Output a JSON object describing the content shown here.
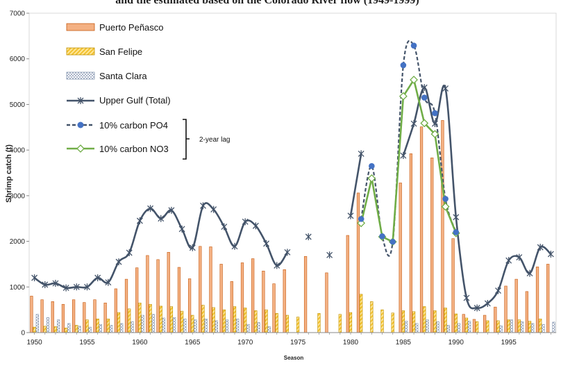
{
  "chart_data": {
    "type": "bar",
    "title": "and the estimated based on the Colorado River flow (1949-1999)",
    "xlabel": "Season",
    "ylabel": "Shrimp catch (t)",
    "xlim": [
      1949.5,
      1999.5
    ],
    "ylim": [
      0,
      7000
    ],
    "y_ticks": [
      "0",
      "1000",
      "2000",
      "3000",
      "4000",
      "5000",
      "6000",
      "7000"
    ],
    "x_ticks": [
      "1950",
      "1955",
      "1960",
      "1965",
      "1970",
      "1975",
      "1980",
      "1985",
      "1990",
      "1995"
    ],
    "bracket_label": "2-year lag",
    "legend": [
      {
        "name": "Puerto Peñasco",
        "kind": "bar",
        "color": "#f4b183"
      },
      {
        "name": "San Felipe",
        "kind": "bar",
        "color": "#ffd966"
      },
      {
        "name": "Santa Clara",
        "kind": "bar",
        "color": "#dae3f3"
      },
      {
        "name": "Upper Gulf (Total)",
        "kind": "line",
        "color": "#44546a"
      },
      {
        "name": "10% carbon PO4",
        "kind": "line",
        "color": "#44546a",
        "marker_color": "#4472c4"
      },
      {
        "name": "10% carbon NO3",
        "kind": "line",
        "color": "#70ad47"
      }
    ],
    "bar_series": [
      {
        "name": "Puerto Peñasco",
        "x": [
          1950,
          1951,
          1952,
          1953,
          1954,
          1955,
          1956,
          1957,
          1958,
          1959,
          1960,
          1961,
          1962,
          1963,
          1964,
          1965,
          1966,
          1967,
          1968,
          1969,
          1970,
          1971,
          1972,
          1973,
          1974,
          1976,
          1978,
          1980,
          1981,
          1985,
          1986,
          1987,
          1988,
          1989,
          1990,
          1991,
          1992,
          1993,
          1994,
          1995,
          1996,
          1997,
          1998,
          1999
        ],
        "values": [
          800,
          720,
          680,
          620,
          720,
          660,
          720,
          650,
          960,
          1170,
          1420,
          1690,
          1600,
          1760,
          1430,
          1180,
          1890,
          1880,
          1500,
          1120,
          1530,
          1620,
          1350,
          1070,
          1380,
          1670,
          1310,
          2130,
          3060,
          3280,
          3920,
          4510,
          3830,
          4650,
          2060,
          400,
          290,
          380,
          560,
          1020,
          1170,
          900,
          1440,
          1500
        ]
      },
      {
        "name": "San Felipe",
        "x": [
          1950,
          1951,
          1952,
          1953,
          1954,
          1955,
          1956,
          1957,
          1958,
          1959,
          1960,
          1961,
          1962,
          1963,
          1964,
          1965,
          1966,
          1967,
          1968,
          1969,
          1970,
          1971,
          1972,
          1973,
          1974,
          1975,
          1977,
          1979,
          1980,
          1981,
          1982,
          1983,
          1984,
          1985,
          1986,
          1987,
          1988,
          1989,
          1990,
          1991,
          1992,
          1993,
          1994,
          1995,
          1996,
          1997,
          1998,
          1999
        ],
        "values": [
          120,
          140,
          130,
          100,
          160,
          280,
          300,
          300,
          440,
          520,
          650,
          620,
          580,
          570,
          470,
          380,
          600,
          550,
          500,
          570,
          540,
          480,
          500,
          420,
          380,
          340,
          420,
          400,
          440,
          840,
          680,
          500,
          430,
          480,
          460,
          570,
          480,
          540,
          410,
          320,
          240,
          260,
          260,
          280,
          280,
          250,
          300,
          0
        ]
      },
      {
        "name": "Santa Clara",
        "x": [
          1950,
          1951,
          1952,
          1953,
          1954,
          1955,
          1956,
          1957,
          1958,
          1959,
          1960,
          1961,
          1962,
          1963,
          1964,
          1965,
          1966,
          1967,
          1968,
          1969,
          1970,
          1971,
          1972,
          1973,
          1984,
          1985,
          1986,
          1987,
          1988,
          1989,
          1990,
          1991,
          1992,
          1993,
          1994,
          1995,
          1996,
          1997,
          1998,
          1999
        ],
        "values": [
          400,
          330,
          280,
          200,
          140,
          120,
          180,
          160,
          200,
          240,
          380,
          400,
          320,
          330,
          300,
          280,
          300,
          260,
          280,
          300,
          180,
          220,
          130,
          0,
          0,
          250,
          200,
          280,
          240,
          160,
          200,
          250,
          0,
          0,
          150,
          280,
          240,
          200,
          180,
          230
        ]
      }
    ],
    "upper_gulf_total": {
      "x": [
        1950,
        1951,
        1952,
        1953,
        1954,
        1955,
        1956,
        1957,
        1958,
        1959,
        1960,
        1961,
        1962,
        1963,
        1964,
        1965,
        1966,
        1967,
        1968,
        1969,
        1970,
        1971,
        1972,
        1973,
        1974,
        1976,
        1978,
        1980,
        1981,
        1985,
        1986,
        1987,
        1988,
        1989,
        1990,
        1991,
        1992,
        1993,
        1994,
        1995,
        1996,
        1997,
        1998,
        1999
      ],
      "values": [
        1200,
        1050,
        1080,
        980,
        1000,
        1000,
        1200,
        1100,
        1550,
        1750,
        2450,
        2720,
        2500,
        2680,
        2270,
        1860,
        2780,
        2700,
        2320,
        1890,
        2430,
        2340,
        1950,
        1470,
        1760,
        2100,
        1700,
        2560,
        3920,
        3880,
        4580,
        5370,
        4580,
        5350,
        2530,
        760,
        540,
        640,
        920,
        1580,
        1650,
        1300,
        1870,
        1720
      ]
    },
    "po4_series": {
      "x": [
        1981,
        1982,
        1983,
        1984,
        1985,
        1986,
        1987,
        1988,
        1989,
        1990
      ],
      "values": [
        2490,
        3650,
        2110,
        1990,
        5860,
        6290,
        5150,
        4810,
        2930,
        2200
      ]
    },
    "no3_series": {
      "x": [
        1981,
        1982,
        1983,
        1984,
        1985,
        1986,
        1987,
        1988,
        1989,
        1990
      ],
      "values": [
        2400,
        3380,
        2100,
        1990,
        5180,
        5540,
        4590,
        4350,
        2760,
        2180
      ]
    }
  }
}
